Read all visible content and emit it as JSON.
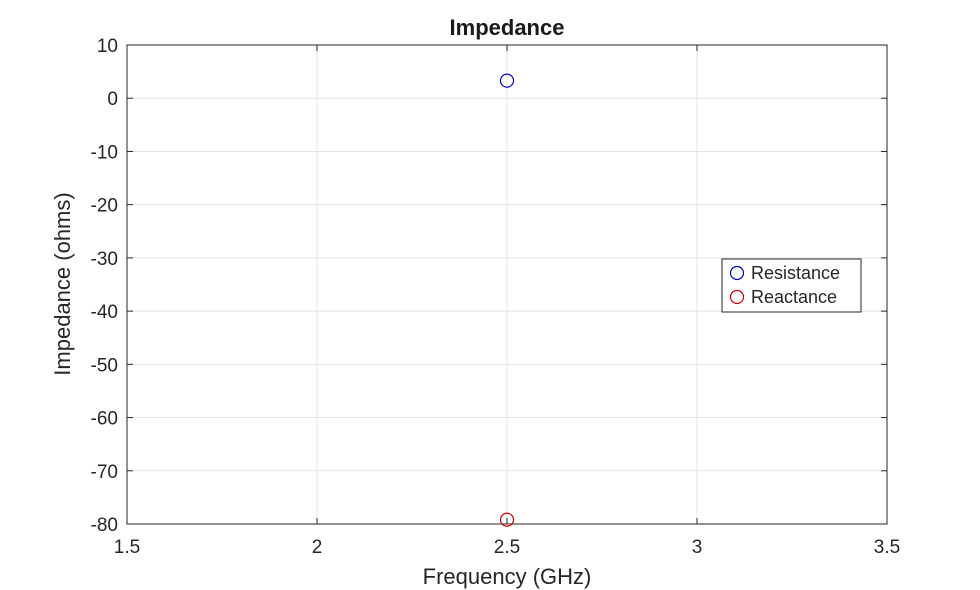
{
  "chart_data": {
    "type": "scatter",
    "title": "Impedance",
    "xlabel": "Frequency (GHz)",
    "ylabel": "Impedance (ohms)",
    "xlim": [
      1.5,
      3.5
    ],
    "ylim": [
      -80,
      10
    ],
    "xticks": [
      1.5,
      2,
      2.5,
      3,
      3.5
    ],
    "xtick_labels": [
      "1.5",
      "2",
      "2.5",
      "3",
      "3.5"
    ],
    "yticks": [
      10,
      0,
      -10,
      -20,
      -30,
      -40,
      -50,
      -60,
      -70,
      -80
    ],
    "ytick_labels": [
      "10",
      "0",
      "-10",
      "-20",
      "-30",
      "-40",
      "-50",
      "-60",
      "-70",
      "-80"
    ],
    "grid": true,
    "legend_position": "right",
    "series": [
      {
        "name": "Resistance",
        "color": "#0000cc",
        "marker": "circle-open",
        "x": [
          2.5
        ],
        "y": [
          3.3
        ]
      },
      {
        "name": "Reactance",
        "color": "#cc0000",
        "marker": "circle-open",
        "x": [
          2.5
        ],
        "y": [
          -79.2
        ]
      }
    ]
  }
}
